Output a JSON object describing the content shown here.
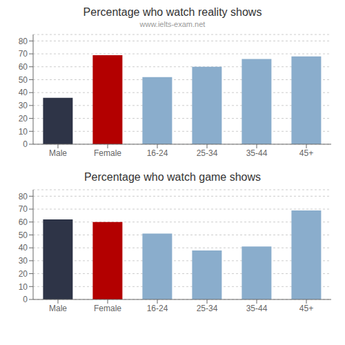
{
  "chart_data": [
    {
      "type": "bar",
      "title": "Percentage who watch reality shows",
      "subtitle": "www.ielts-exam.net",
      "categories": [
        "Male",
        "Female",
        "16-24",
        "25-34",
        "35-44",
        "45+"
      ],
      "values": [
        36,
        69,
        52,
        60,
        66,
        68
      ],
      "colors": [
        "#2e3447",
        "#b30000",
        "#8aadcc",
        "#8aadcc",
        "#8aadcc",
        "#8aadcc"
      ],
      "ylim": [
        0,
        85
      ],
      "yticks": [
        0,
        10,
        20,
        30,
        40,
        50,
        60,
        70,
        80
      ],
      "grid": true
    },
    {
      "type": "bar",
      "title": "Percentage who watch game shows",
      "categories": [
        "Male",
        "Female",
        "16-24",
        "25-34",
        "35-44",
        "45+"
      ],
      "values": [
        62,
        60,
        51,
        38,
        41,
        69
      ],
      "colors": [
        "#2e3447",
        "#b30000",
        "#8aadcc",
        "#8aadcc",
        "#8aadcc",
        "#8aadcc"
      ],
      "ylim": [
        0,
        85
      ],
      "yticks": [
        0,
        10,
        20,
        30,
        40,
        50,
        60,
        70,
        80
      ],
      "grid": true
    }
  ]
}
